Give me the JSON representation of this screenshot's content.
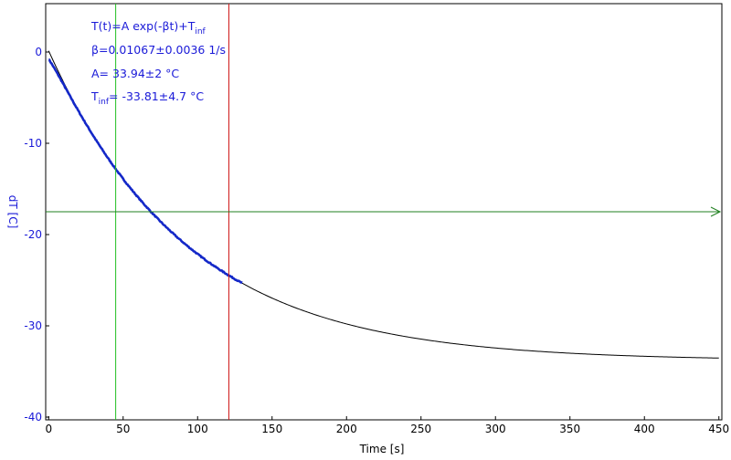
{
  "chart_data": {
    "type": "line",
    "xlabel": "Time [s]",
    "ylabel": "dT [C]",
    "xlim": [
      -2,
      452
    ],
    "ylim": [
      -40.3,
      5.3
    ],
    "xticks": [
      0,
      50,
      100,
      150,
      200,
      250,
      300,
      350,
      400,
      450
    ],
    "yticks": [
      0,
      -10,
      -20,
      -30,
      -40
    ],
    "grid": false,
    "fit": {
      "A": 33.94,
      "beta": 0.01067,
      "T_inf": -33.81
    },
    "measured_range": [
      0,
      130
    ],
    "series": [
      {
        "values": "measured points, t = 0–130 s, following T(t)"
      },
      {
        "values": "fitted curve T(t), t = 0–450 s"
      }
    ],
    "cursors": {
      "green_x": 45,
      "red_x": 121,
      "horizontal_y": -17.5
    },
    "annotations": [
      {
        "main": "T(t)=A exp(-βt)+T",
        "sub": "inf",
        "tail": ""
      },
      {
        "main": "β=0.01067±0.0036 1/s",
        "sub": "",
        "tail": ""
      },
      {
        "main": "A= 33.94±2 °C",
        "sub": "",
        "tail": ""
      },
      {
        "main": "T",
        "sub": "inf",
        "tail": "= -33.81±4.7 °C"
      }
    ],
    "colors": {
      "axis": "#000000",
      "y_text": "#1a1ad8",
      "measured": "#1428c8",
      "fit": "#000000",
      "green_cursor": "#22c022",
      "red_cursor": "#d01818",
      "h_cursor": "#1f7f1f"
    }
  }
}
